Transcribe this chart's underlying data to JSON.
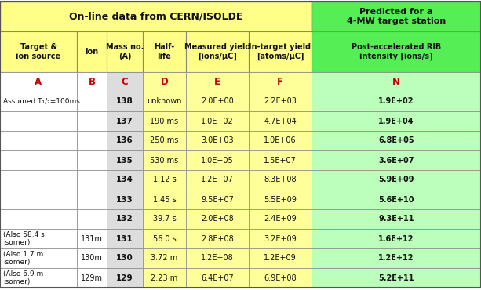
{
  "title_yellow": "On-line data from CERN/ISOLDE",
  "title_green": "Predicted for a\n4-MW target station",
  "bg_yellow": "#FFFF88",
  "bg_green": "#55EE55",
  "bg_lgray": "#DDDDDD",
  "bg_lyellow": "#FFFF99",
  "bg_lgreen": "#BBFFBB",
  "bg_white": "#FFFFFF",
  "red": "#CC0000",
  "black": "#111111",
  "col_headers": [
    "Target &\nion source",
    "Ion",
    "Mass no.\n(A)",
    "Half-\nlife",
    "Measured yield\n[ions/μC]",
    "In-target yield\n[atoms/μC]",
    "Post-accelerated RIB\nintensity [ions/s]"
  ],
  "col_letters": [
    "A",
    "B",
    "C",
    "D",
    "E",
    "F",
    "N"
  ],
  "col_bgs": [
    "#FFFFFF",
    "#FFFFFF",
    "#DDDDDD",
    "#FFFF99",
    "#FFFF99",
    "#FFFF99",
    "#BBFFBB"
  ],
  "rows": [
    [
      "(Also 6.9 m\nisomer)",
      "129m",
      "129",
      "2.23 m",
      "6.4E+07",
      "6.9E+08",
      "5.2E+11"
    ],
    [
      "(Also 1.7 m\nisomer)",
      "130m",
      "130",
      "3.72 m",
      "1.2E+08",
      "1.2E+09",
      "1.2E+12"
    ],
    [
      "(Also 58.4 s\nisomer)",
      "131m",
      "131",
      "56.0 s",
      "2.8E+08",
      "3.2E+09",
      "1.6E+12"
    ],
    [
      "",
      "",
      "132",
      "39.7 s",
      "2.0E+08",
      "2.4E+09",
      "9.3E+11"
    ],
    [
      "",
      "",
      "133",
      "1.45 s",
      "9.5E+07",
      "5.5E+09",
      "5.6E+10"
    ],
    [
      "",
      "",
      "134",
      "1.12 s",
      "1.2E+07",
      "8.3E+08",
      "5.9E+09"
    ],
    [
      "",
      "",
      "135",
      "530 ms",
      "1.0E+05",
      "1.5E+07",
      "3.6E+07"
    ],
    [
      "",
      "",
      "136",
      "250 ms",
      "3.0E+03",
      "1.0E+06",
      "6.8E+05"
    ],
    [
      "",
      "",
      "137",
      "190 ms",
      "1.0E+02",
      "4.7E+04",
      "1.9E+04"
    ],
    [
      "Assumed T₁/₂=100ms",
      "",
      "138",
      "unknown",
      "2.0E+00",
      "2.2E+03",
      "1.9E+02"
    ]
  ],
  "figw": 6.13,
  "figh": 3.7,
  "dpi": 100
}
